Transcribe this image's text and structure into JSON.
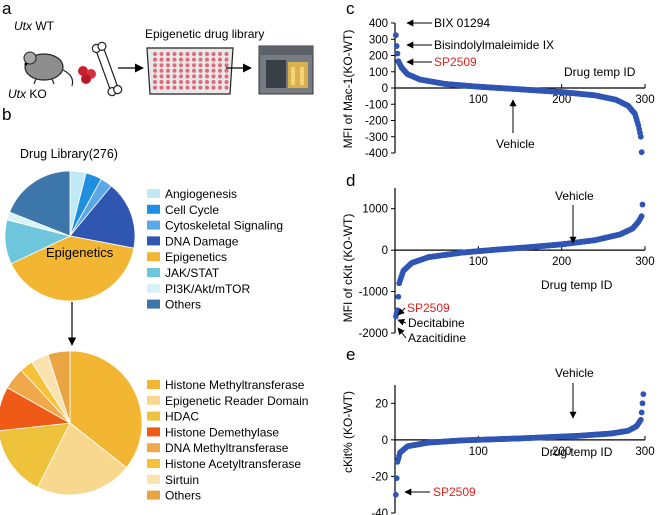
{
  "panel_a": {
    "letter": "a",
    "strain_wt_gene": "Utx",
    "strain_wt_suffix": " WT",
    "strain_ko_gene": "Utx",
    "strain_ko_suffix": " KO",
    "library_label": "Epigenetic drug library"
  },
  "panel_b": {
    "letter": "b",
    "title": "Drug Library(276)",
    "top_pie": {
      "center_label": "Epigenetics",
      "slices": [
        {
          "label": "Angiogenesis",
          "value": 4,
          "color": "#bfe9f4"
        },
        {
          "label": "Cell Cycle",
          "value": 4,
          "color": "#1f8fe0"
        },
        {
          "label": "Cytoskeletal Signaling",
          "value": 3,
          "color": "#5aa8e8"
        },
        {
          "label": "DNA Damage",
          "value": 17,
          "color": "#2f56b0"
        },
        {
          "label": "Epigenetics",
          "value": 40,
          "color": "#f2b632"
        },
        {
          "label": "JAK/STAT",
          "value": 11,
          "color": "#6ec6dc"
        },
        {
          "label": "PI3K/Akt/mTOR",
          "value": 2,
          "color": "#d9f2f8"
        },
        {
          "label": "Others",
          "value": 19,
          "color": "#3c76aa"
        }
      ]
    },
    "bottom_pie": {
      "slices": [
        {
          "label": "Histone Methyltransferase",
          "value": 36,
          "color": "#f2b632"
        },
        {
          "label": "Epigenetic Reader Domain",
          "value": 22,
          "color": "#f8d88e"
        },
        {
          "label": "HDAC",
          "value": 16,
          "color": "#eec23a"
        },
        {
          "label": "Histone Demethylase",
          "value": 10,
          "color": "#ef5a16"
        },
        {
          "label": "DNA Methyltransferase",
          "value": 5,
          "color": "#f0a94a"
        },
        {
          "label": "Histone Acetyltransferase",
          "value": 3,
          "color": "#f5c23a"
        },
        {
          "label": "Sirtuin",
          "value": 4,
          "color": "#fbe3b0"
        },
        {
          "label": "Others",
          "value": 5,
          "color": "#e9a542"
        }
      ]
    }
  },
  "panel_c": {
    "letter": "c",
    "ylabel": "MFI of Mac-1(KO-WT)",
    "xlabel": "Drug temp ID",
    "annotations": {
      "a1": "BIX 01294",
      "a2": "Bisindolylmaleimide  IX",
      "a3": "SP2509",
      "vehicle": "Vehicle"
    }
  },
  "panel_d": {
    "letter": "d",
    "ylabel": "MFI of cKit (KO-WT)",
    "xlabel": "Drug temp ID",
    "annotations": {
      "vehicle": "Vehicle",
      "a1": "SP2509",
      "a2": "Decitabine",
      "a3": "Azacitidine"
    }
  },
  "panel_e": {
    "letter": "e",
    "ylabel": "cKit% (KO-WT)",
    "xlabel": "Drug temp ID",
    "annotations": {
      "vehicle": "Vehicle",
      "a1": "SP2509"
    }
  },
  "colors": {
    "point": "#2f55b4",
    "highlight": "#e8201c"
  },
  "chart_data": [
    {
      "type": "scatter",
      "panel": "c",
      "ylabel": "MFI of Mac-1(KO-WT)",
      "xlabel": "Drug temp ID",
      "xlim": [
        0,
        300
      ],
      "ylim": [
        -400,
        400
      ],
      "xticks": [
        100,
        200,
        300
      ],
      "yticks": [
        400,
        300,
        200,
        100,
        0,
        -100,
        -200,
        -300,
        -400
      ],
      "curve": [
        [
          1,
          325
        ],
        [
          2,
          258
        ],
        [
          4,
          165
        ],
        [
          8,
          125
        ],
        [
          15,
          85
        ],
        [
          30,
          52
        ],
        [
          60,
          25
        ],
        [
          100,
          8
        ],
        [
          150,
          -8
        ],
        [
          200,
          -25
        ],
        [
          240,
          -45
        ],
        [
          265,
          -72
        ],
        [
          280,
          -110
        ],
        [
          288,
          -160
        ],
        [
          292,
          -230
        ],
        [
          295,
          -300
        ],
        [
          296,
          -395
        ]
      ]
    },
    {
      "type": "scatter",
      "panel": "d",
      "ylabel": "MFI of cKit (KO-WT)",
      "xlabel": "Drug temp ID",
      "xlim": [
        0,
        300
      ],
      "ylim": [
        -2000,
        1500
      ],
      "xticks": [
        100,
        200,
        300
      ],
      "yticks": [
        1000,
        0,
        -1000,
        -2000
      ],
      "curve": [
        [
          1,
          -1600
        ],
        [
          2,
          -1520
        ],
        [
          3,
          -1450
        ],
        [
          5,
          -800
        ],
        [
          10,
          -500
        ],
        [
          20,
          -310
        ],
        [
          40,
          -170
        ],
        [
          80,
          -60
        ],
        [
          120,
          10
        ],
        [
          160,
          70
        ],
        [
          200,
          140
        ],
        [
          240,
          240
        ],
        [
          270,
          380
        ],
        [
          285,
          520
        ],
        [
          292,
          680
        ],
        [
          296,
          820
        ],
        [
          297,
          1100
        ]
      ]
    },
    {
      "type": "scatter",
      "panel": "e",
      "ylabel": "cKit% (KO-WT)",
      "xlabel": "Drug temp ID",
      "xlim": [
        0,
        300
      ],
      "ylim": [
        -40,
        30
      ],
      "xticks": [
        100,
        200,
        300
      ],
      "yticks": [
        20,
        0,
        -20,
        -40
      ],
      "curve": [
        [
          1,
          -30
        ],
        [
          3,
          -12
        ],
        [
          6,
          -7
        ],
        [
          15,
          -3.5
        ],
        [
          40,
          -1.5
        ],
        [
          80,
          -0.3
        ],
        [
          150,
          0.8
        ],
        [
          220,
          2.2
        ],
        [
          260,
          3.5
        ],
        [
          280,
          5
        ],
        [
          290,
          7.5
        ],
        [
          295,
          11
        ],
        [
          296,
          15
        ],
        [
          297,
          20
        ],
        [
          298,
          25
        ]
      ]
    }
  ]
}
